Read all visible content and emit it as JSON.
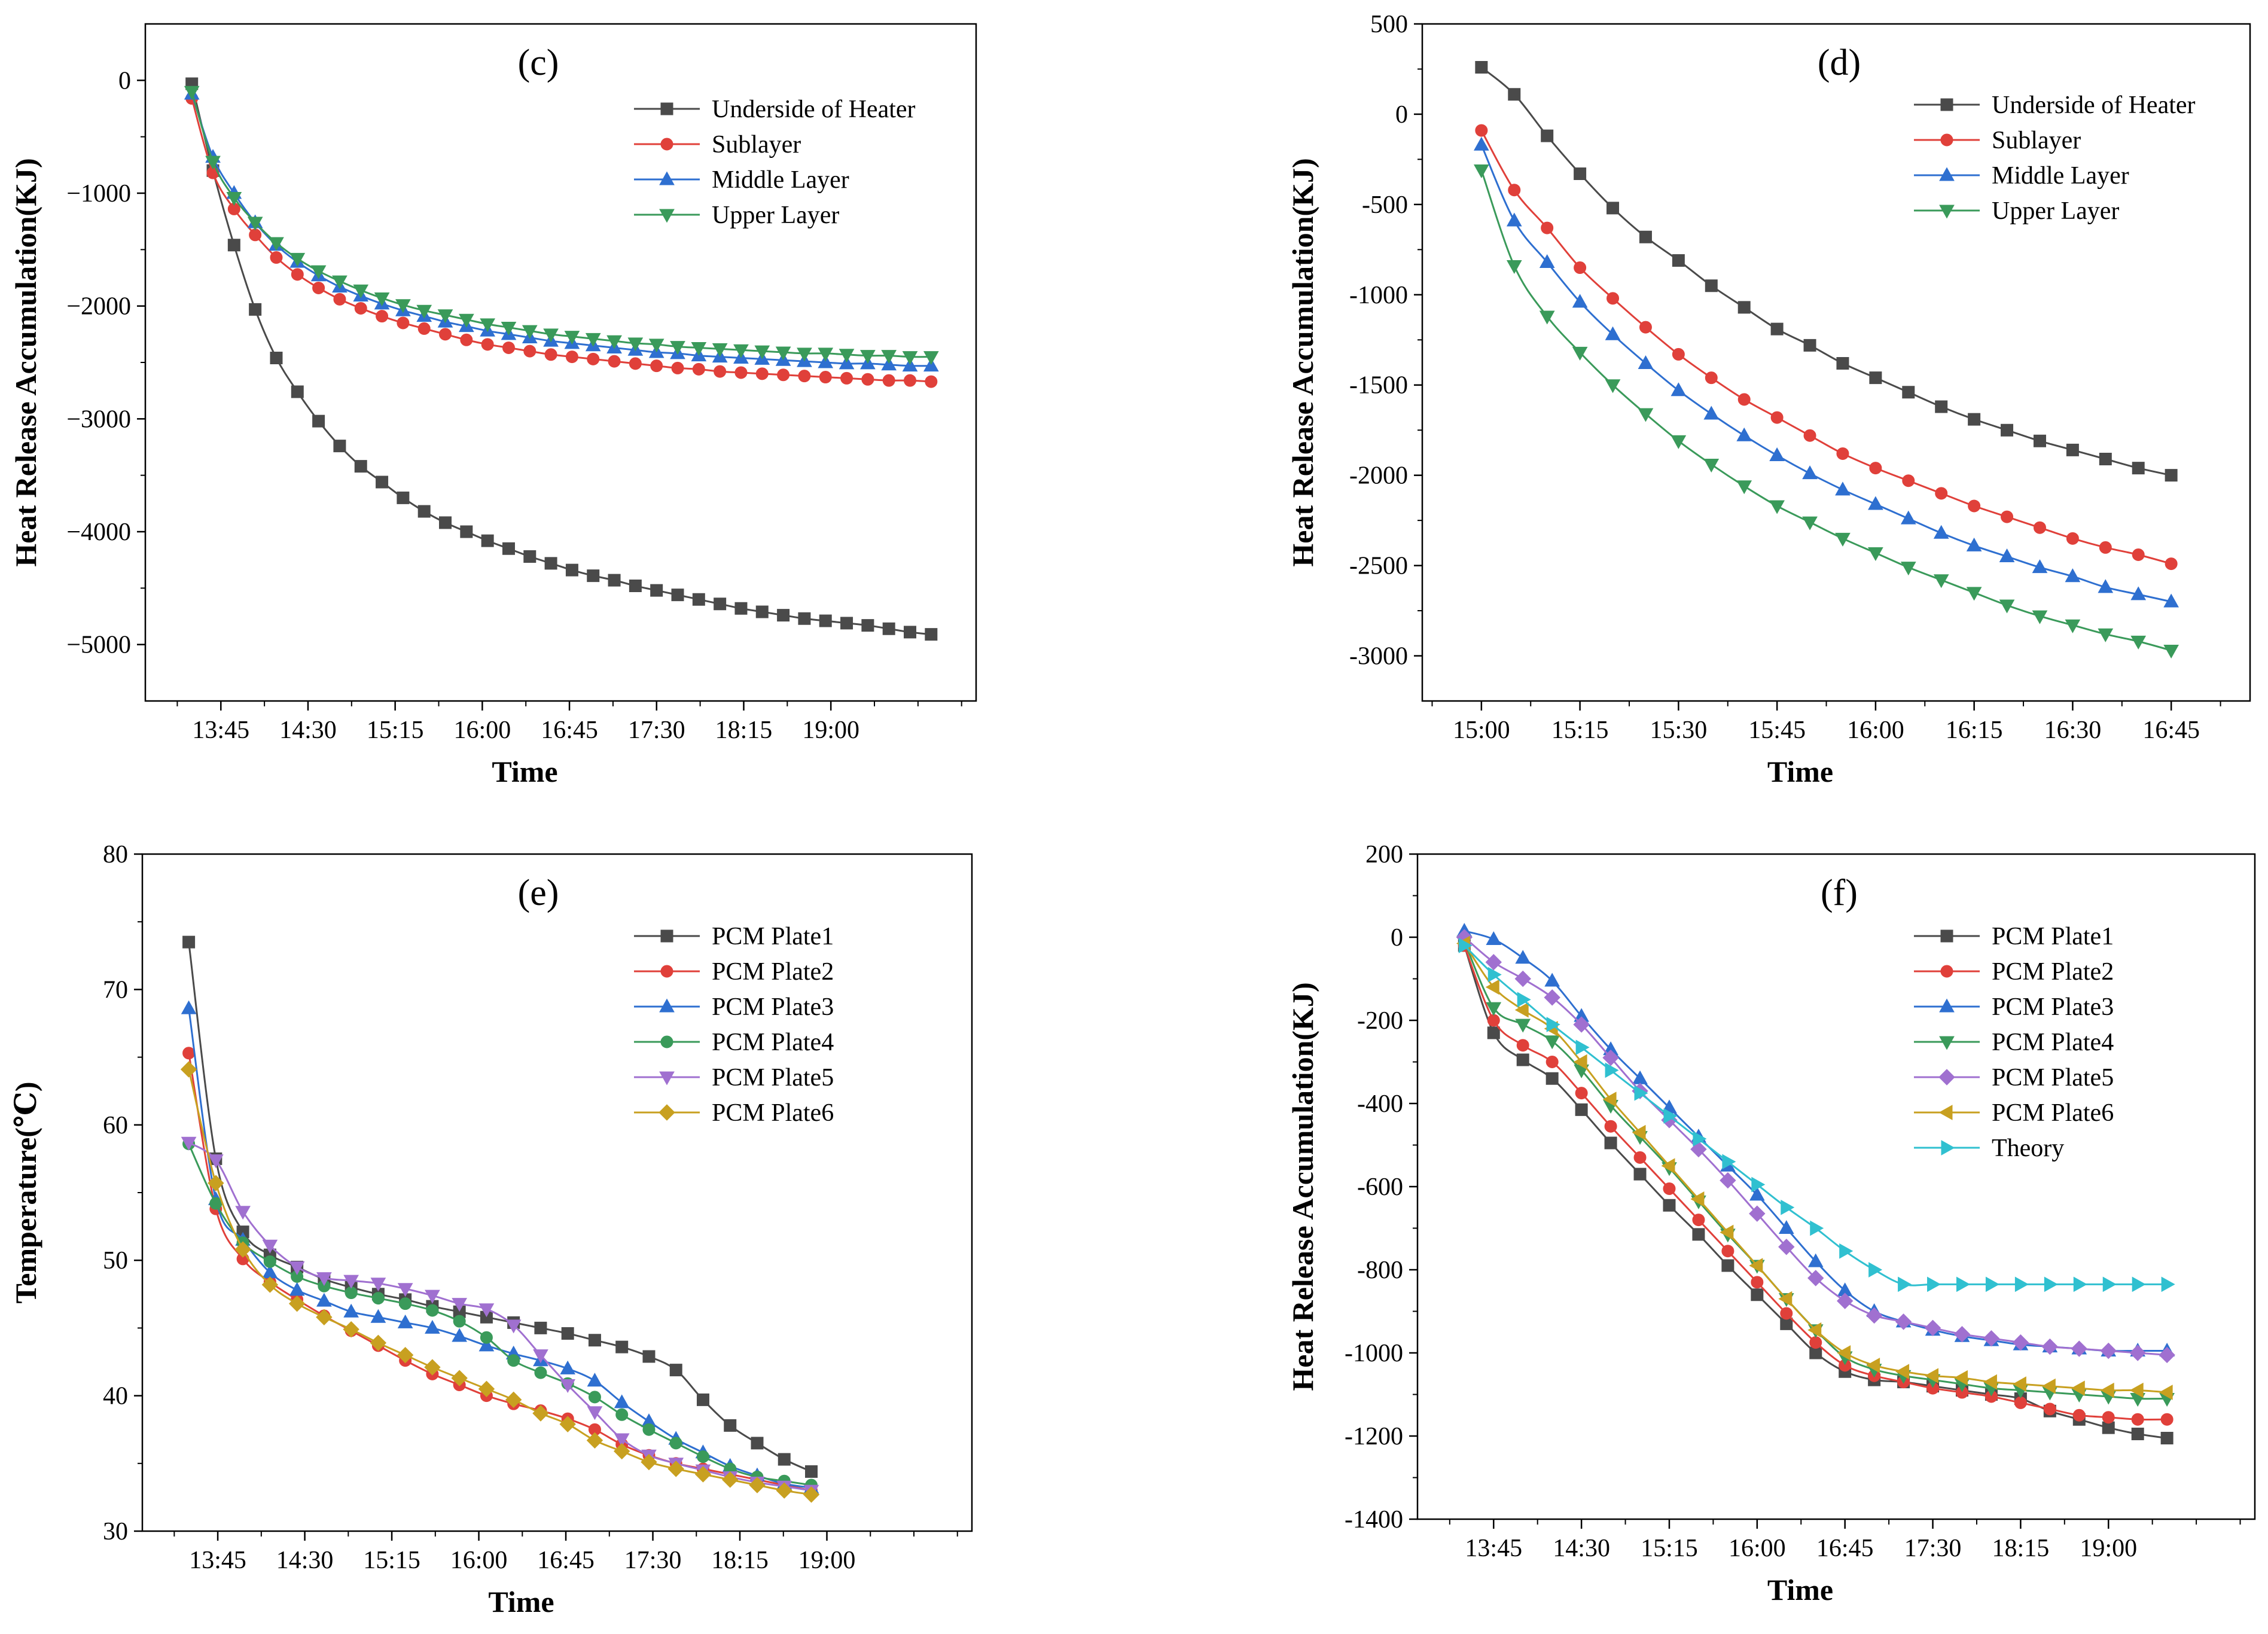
{
  "chart_data": [
    {
      "id": "c",
      "type": "line",
      "panel_label": "(c)",
      "xlabel": "Time",
      "ylabel": "Heat Release Accumulation(KJ)",
      "ylim": [
        -5500,
        500
      ],
      "yticks": [
        0,
        -1000,
        -2000,
        -3000,
        -4000,
        -5000
      ],
      "ytick_labels": [
        "0",
        "−1000",
        "−2000",
        "−3000",
        "−4000",
        "−5000"
      ],
      "xlim": [
        13.1,
        20.25
      ],
      "xticks": [
        13.75,
        14.5,
        15.25,
        16.0,
        16.75,
        17.5,
        18.25,
        19.0
      ],
      "xtick_labels": [
        "13:45",
        "14:30",
        "15:15",
        "16:00",
        "16:45",
        "17:30",
        "18:15",
        "19:00"
      ],
      "legend_position": "top-right",
      "series": [
        {
          "name": "Underside of Heater",
          "color": "#4a4a4a",
          "marker": "square",
          "x_start": 13.5,
          "x_step": 0.1818,
          "values": [
            -30,
            -800,
            -1460,
            -2030,
            -2460,
            -2760,
            -3020,
            -3240,
            -3420,
            -3560,
            -3700,
            -3820,
            -3920,
            -4000,
            -4080,
            -4150,
            -4220,
            -4280,
            -4340,
            -4390,
            -4430,
            -4480,
            -4520,
            -4560,
            -4600,
            -4640,
            -4680,
            -4710,
            -4740,
            -4770,
            -4790,
            -4810,
            -4830,
            -4860,
            -4890,
            -4910
          ]
        },
        {
          "name": "Sublayer",
          "color": "#e0403a",
          "marker": "circle",
          "x_start": 13.5,
          "x_step": 0.1818,
          "values": [
            -160,
            -820,
            -1140,
            -1370,
            -1570,
            -1720,
            -1840,
            -1940,
            -2020,
            -2090,
            -2150,
            -2200,
            -2250,
            -2300,
            -2340,
            -2370,
            -2400,
            -2430,
            -2450,
            -2470,
            -2490,
            -2510,
            -2530,
            -2550,
            -2560,
            -2580,
            -2590,
            -2600,
            -2610,
            -2620,
            -2630,
            -2640,
            -2650,
            -2660,
            -2660,
            -2670
          ]
        },
        {
          "name": "Middle Layer",
          "color": "#2e6fd0",
          "marker": "triangle-up",
          "x_start": 13.5,
          "x_step": 0.1818,
          "values": [
            -120,
            -680,
            -1000,
            -1260,
            -1460,
            -1610,
            -1730,
            -1830,
            -1910,
            -1980,
            -2040,
            -2090,
            -2140,
            -2180,
            -2220,
            -2250,
            -2280,
            -2310,
            -2330,
            -2350,
            -2370,
            -2390,
            -2410,
            -2420,
            -2440,
            -2450,
            -2460,
            -2470,
            -2480,
            -2490,
            -2500,
            -2510,
            -2510,
            -2520,
            -2530,
            -2530
          ]
        },
        {
          "name": "Upper Layer",
          "color": "#3a9a5a",
          "marker": "triangle-down",
          "x_start": 13.5,
          "x_step": 0.1818,
          "values": [
            -100,
            -720,
            -1040,
            -1260,
            -1440,
            -1580,
            -1690,
            -1780,
            -1860,
            -1930,
            -1990,
            -2040,
            -2080,
            -2120,
            -2160,
            -2190,
            -2220,
            -2250,
            -2270,
            -2290,
            -2310,
            -2330,
            -2340,
            -2360,
            -2370,
            -2380,
            -2390,
            -2400,
            -2410,
            -2420,
            -2420,
            -2430,
            -2440,
            -2440,
            -2450,
            -2450
          ]
        }
      ]
    },
    {
      "id": "d",
      "type": "line",
      "panel_label": "(d)",
      "xlabel": "Time",
      "ylabel": "Heat Release Accumulation(KJ)",
      "ylim": [
        -3250,
        500
      ],
      "yticks": [
        500,
        0,
        -500,
        -1000,
        -1500,
        -2000,
        -2500,
        -3000
      ],
      "ytick_labels": [
        "500",
        "0",
        "-500",
        "-1000",
        "-1500",
        "-2000",
        "-2500",
        "-3000"
      ],
      "xlim": [
        14.85,
        16.95
      ],
      "xticks": [
        15.0,
        15.25,
        15.5,
        15.75,
        16.0,
        16.25,
        16.5,
        16.75
      ],
      "xtick_labels": [
        "15:00",
        "15:15",
        "15:30",
        "15:45",
        "16:00",
        "16:15",
        "16:30",
        "16:45"
      ],
      "legend_position": "top-right",
      "series": [
        {
          "name": "Underside of Heater",
          "color": "#4a4a4a",
          "marker": "square",
          "x_start": 15.0,
          "x_step": 0.08333,
          "values": [
            260,
            110,
            -120,
            -330,
            -520,
            -680,
            -810,
            -950,
            -1070,
            -1190,
            -1280,
            -1380,
            -1460,
            -1540,
            -1620,
            -1690,
            -1750,
            -1810,
            -1860,
            -1910,
            -1960,
            -2000
          ]
        },
        {
          "name": "Sublayer",
          "color": "#e0403a",
          "marker": "circle",
          "x_start": 15.0,
          "x_step": 0.08333,
          "values": [
            -90,
            -420,
            -630,
            -850,
            -1020,
            -1180,
            -1330,
            -1460,
            -1580,
            -1680,
            -1780,
            -1880,
            -1960,
            -2030,
            -2100,
            -2170,
            -2230,
            -2290,
            -2350,
            -2400,
            -2440,
            -2490
          ]
        },
        {
          "name": "Middle Layer",
          "color": "#2e6fd0",
          "marker": "triangle-up",
          "x_start": 15.0,
          "x_step": 0.08333,
          "values": [
            -170,
            -590,
            -820,
            -1040,
            -1220,
            -1380,
            -1530,
            -1660,
            -1780,
            -1890,
            -1990,
            -2080,
            -2160,
            -2240,
            -2320,
            -2390,
            -2450,
            -2510,
            -2560,
            -2620,
            -2660,
            -2700
          ]
        },
        {
          "name": "Upper Layer",
          "color": "#3a9a5a",
          "marker": "triangle-down",
          "x_start": 15.0,
          "x_step": 0.08333,
          "values": [
            -310,
            -840,
            -1120,
            -1320,
            -1500,
            -1660,
            -1810,
            -1940,
            -2060,
            -2170,
            -2260,
            -2350,
            -2430,
            -2510,
            -2580,
            -2650,
            -2720,
            -2780,
            -2830,
            -2880,
            -2920,
            -2970
          ]
        }
      ]
    },
    {
      "id": "e",
      "type": "line",
      "panel_label": "(e)",
      "xlabel": "Time",
      "ylabel": "Temperature(℃)",
      "ylim": [
        30,
        80
      ],
      "yticks": [
        30,
        40,
        50,
        60,
        70,
        80
      ],
      "ytick_labels": [
        "30",
        "40",
        "50",
        "60",
        "70",
        "80"
      ],
      "xlim": [
        13.1,
        20.25
      ],
      "xticks": [
        13.75,
        14.5,
        15.25,
        16.0,
        16.75,
        17.5,
        18.25,
        19.0
      ],
      "xtick_labels": [
        "13:45",
        "14:30",
        "15:15",
        "16:00",
        "16:45",
        "17:30",
        "18:15",
        "19:00"
      ],
      "legend_position": "top-right",
      "series": [
        {
          "name": "PCM Plate1",
          "color": "#4a4a4a",
          "marker": "square",
          "x_start": 13.5,
          "x_step": 0.2333,
          "values": [
            73.5,
            57.5,
            52.1,
            50.4,
            49.5,
            48.6,
            48.0,
            47.5,
            47.1,
            46.6,
            46.2,
            45.8,
            45.4,
            45.0,
            44.6,
            44.1,
            43.6,
            42.9,
            41.9,
            39.7,
            37.8,
            36.5,
            35.3,
            34.4
          ]
        },
        {
          "name": "PCM Plate2",
          "color": "#e0403a",
          "marker": "circle",
          "x_start": 13.5,
          "x_step": 0.2333,
          "values": [
            65.3,
            53.8,
            50.1,
            48.4,
            47.1,
            45.9,
            44.8,
            43.7,
            42.6,
            41.6,
            40.8,
            40.0,
            39.4,
            38.9,
            38.3,
            37.5,
            36.4,
            35.6,
            35.0,
            34.6,
            34.2,
            33.8,
            33.4,
            33.0
          ]
        },
        {
          "name": "PCM Plate3",
          "color": "#2e6fd0",
          "marker": "triangle-up",
          "x_start": 13.5,
          "x_step": 0.2333,
          "values": [
            68.6,
            54.5,
            51.5,
            49.1,
            47.8,
            47.0,
            46.2,
            45.8,
            45.4,
            45.0,
            44.4,
            43.7,
            43.1,
            42.6,
            42.0,
            41.1,
            39.5,
            38.1,
            36.8,
            35.8,
            34.8,
            34.1,
            33.5,
            33.2
          ]
        },
        {
          "name": "PCM Plate4",
          "color": "#3a9a5a",
          "marker": "circle",
          "x_start": 13.5,
          "x_step": 0.2333,
          "values": [
            58.6,
            54.2,
            51.3,
            49.9,
            48.8,
            48.1,
            47.6,
            47.2,
            46.8,
            46.3,
            45.5,
            44.3,
            42.6,
            41.7,
            40.9,
            39.9,
            38.6,
            37.5,
            36.5,
            35.5,
            34.6,
            34.0,
            33.7,
            33.4
          ]
        },
        {
          "name": "PCM Plate5",
          "color": "#a070d0",
          "marker": "triangle-down",
          "x_start": 13.5,
          "x_step": 0.2333,
          "values": [
            58.7,
            57.4,
            53.6,
            51.1,
            49.5,
            48.7,
            48.5,
            48.3,
            47.9,
            47.4,
            46.8,
            46.4,
            45.2,
            43.0,
            40.8,
            38.8,
            36.8,
            35.6,
            35.0,
            34.5,
            34.0,
            33.6,
            33.3,
            33.0
          ]
        },
        {
          "name": "PCM Plate6",
          "color": "#c8a020",
          "marker": "diamond",
          "x_start": 13.5,
          "x_step": 0.2333,
          "values": [
            64.1,
            55.7,
            50.8,
            48.2,
            46.8,
            45.8,
            44.9,
            43.9,
            43.0,
            42.1,
            41.3,
            40.5,
            39.7,
            38.7,
            37.9,
            36.7,
            35.9,
            35.1,
            34.6,
            34.2,
            33.8,
            33.4,
            33.0,
            32.7
          ]
        }
      ]
    },
    {
      "id": "f",
      "type": "line",
      "panel_label": "(f)",
      "xlabel": "Time",
      "ylabel": "Heat Release Accumulation(KJ)",
      "ylim": [
        -1400,
        200
      ],
      "yticks": [
        200,
        0,
        -200,
        -400,
        -600,
        -800,
        -1000,
        -1200,
        -1400
      ],
      "ytick_labels": [
        "200",
        "0",
        "-200",
        "-400",
        "-600",
        "-800",
        "-1000",
        "-1200",
        "-1400"
      ],
      "xlim": [
        13.1,
        20.25
      ],
      "xticks": [
        13.75,
        14.5,
        15.25,
        16.0,
        16.75,
        17.5,
        18.25,
        19.0
      ],
      "xtick_labels": [
        "13:45",
        "14:30",
        "15:15",
        "16:00",
        "16:45",
        "17:30",
        "18:15",
        "19:00"
      ],
      "legend_position": "top-right",
      "series": [
        {
          "name": "PCM Plate1",
          "color": "#4a4a4a",
          "marker": "square",
          "x_start": 13.5,
          "x_step": 0.25,
          "values": [
            -20,
            -230,
            -295,
            -340,
            -415,
            -495,
            -570,
            -645,
            -715,
            -790,
            -860,
            -930,
            -1000,
            -1045,
            -1065,
            -1070,
            -1080,
            -1090,
            -1100,
            -1110,
            -1140,
            -1160,
            -1180,
            -1195,
            -1205
          ]
        },
        {
          "name": "PCM Plate2",
          "color": "#e0403a",
          "marker": "circle",
          "x_start": 13.5,
          "x_step": 0.25,
          "values": [
            -20,
            -200,
            -260,
            -300,
            -375,
            -455,
            -530,
            -605,
            -680,
            -755,
            -830,
            -905,
            -975,
            -1030,
            -1055,
            -1070,
            -1085,
            -1095,
            -1105,
            -1120,
            -1135,
            -1150,
            -1155,
            -1160,
            -1160
          ]
        },
        {
          "name": "PCM Plate3",
          "color": "#2e6fd0",
          "marker": "triangle-up",
          "x_start": 13.5,
          "x_step": 0.25,
          "values": [
            15,
            -5,
            -50,
            -105,
            -190,
            -270,
            -340,
            -410,
            -480,
            -550,
            -620,
            -700,
            -780,
            -850,
            -900,
            -925,
            -945,
            -960,
            -970,
            -980,
            -985,
            -990,
            -995,
            -995,
            -995
          ]
        },
        {
          "name": "PCM Plate4",
          "color": "#3a9a5a",
          "marker": "triangle-down",
          "x_start": 13.5,
          "x_step": 0.25,
          "values": [
            -10,
            -170,
            -210,
            -250,
            -320,
            -405,
            -480,
            -555,
            -635,
            -715,
            -790,
            -870,
            -945,
            -1010,
            -1040,
            -1055,
            -1065,
            -1075,
            -1085,
            -1090,
            -1095,
            -1100,
            -1105,
            -1110,
            -1110
          ]
        },
        {
          "name": "PCM Plate5",
          "color": "#a070d0",
          "marker": "diamond",
          "x_start": 13.5,
          "x_step": 0.25,
          "values": [
            0,
            -60,
            -100,
            -145,
            -210,
            -290,
            -370,
            -440,
            -510,
            -585,
            -665,
            -745,
            -820,
            -875,
            -910,
            -925,
            -940,
            -955,
            -965,
            -975,
            -985,
            -990,
            -995,
            -1000,
            -1005
          ]
        },
        {
          "name": "PCM Plate6",
          "color": "#c8a020",
          "marker": "triangle-left",
          "x_start": 13.5,
          "x_step": 0.25,
          "values": [
            -15,
            -120,
            -175,
            -220,
            -300,
            -390,
            -470,
            -550,
            -630,
            -710,
            -790,
            -870,
            -945,
            -1000,
            -1030,
            -1045,
            -1055,
            -1060,
            -1070,
            -1075,
            -1080,
            -1085,
            -1090,
            -1090,
            -1095
          ]
        },
        {
          "name": "Theory",
          "color": "#30c0d0",
          "marker": "triangle-right",
          "x_start": 13.5,
          "x_step": 0.25,
          "values": [
            -20,
            -90,
            -150,
            -210,
            -265,
            -320,
            -375,
            -430,
            -485,
            -540,
            -595,
            -650,
            -700,
            -755,
            -800,
            -835,
            -835,
            -835,
            -835,
            -835,
            -835,
            -835,
            -835,
            -835,
            -835
          ]
        }
      ]
    }
  ]
}
